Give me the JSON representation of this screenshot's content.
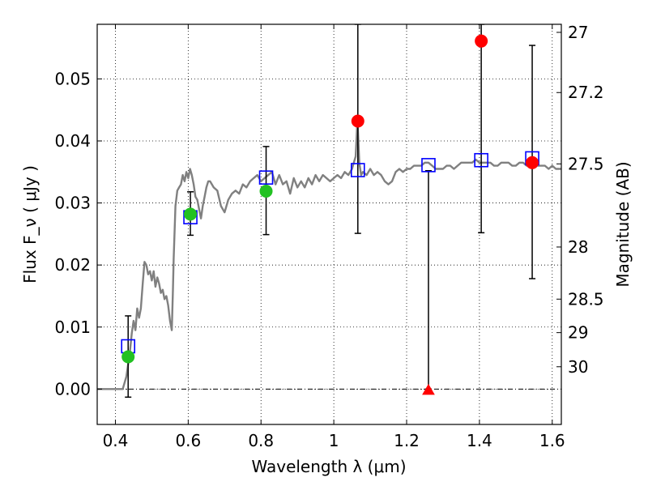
{
  "chart_data": {
    "type": "scatter",
    "xlabel": "Wavelength  λ (μm)",
    "ylabel": "Flux  F_ν  ( μJy )",
    "ylabel_right": "Magnitude (AB)",
    "xlim": [
      0.35,
      1.625
    ],
    "ylim": [
      -0.0057,
      0.0588
    ],
    "x_ticks": [
      {
        "value": 0.4,
        "label": "0.4"
      },
      {
        "value": 0.6,
        "label": "0.6"
      },
      {
        "value": 0.8,
        "label": "0.8"
      },
      {
        "value": 1.0,
        "label": "1"
      },
      {
        "value": 1.2,
        "label": "1.2"
      },
      {
        "value": 1.4,
        "label": "1.4"
      },
      {
        "value": 1.6,
        "label": "1.6"
      }
    ],
    "y_ticks": [
      {
        "value": 0.0,
        "label": "0.00"
      },
      {
        "value": 0.01,
        "label": "0.01"
      },
      {
        "value": 0.02,
        "label": "0.02"
      },
      {
        "value": 0.03,
        "label": "0.03"
      },
      {
        "value": 0.04,
        "label": "0.04"
      },
      {
        "value": 0.05,
        "label": "0.05"
      }
    ],
    "right_ticks": [
      {
        "label": "27",
        "flux": 0.0575
      },
      {
        "label": "27.2",
        "flux": 0.0478
      },
      {
        "label": "27.5",
        "flux": 0.0363
      },
      {
        "label": "28",
        "flux": 0.0229
      },
      {
        "label": "28.5",
        "flux": 0.0145
      },
      {
        "label": "29",
        "flux": 0.0091
      },
      {
        "label": "30",
        "flux": 0.0036
      }
    ],
    "grid": true,
    "colors": {
      "model": "#808080",
      "model_box": "#0000ff",
      "detection": "#22c122",
      "low_sn": "#ff0000",
      "error_bar": "#000000"
    },
    "model_spectrum": [
      [
        0.35,
        0.0
      ],
      [
        0.41,
        0.0
      ],
      [
        0.42,
        0.0
      ],
      [
        0.43,
        0.002
      ],
      [
        0.44,
        0.006
      ],
      [
        0.445,
        0.009
      ],
      [
        0.45,
        0.011
      ],
      [
        0.455,
        0.0095
      ],
      [
        0.46,
        0.013
      ],
      [
        0.465,
        0.0115
      ],
      [
        0.47,
        0.013
      ],
      [
        0.475,
        0.017
      ],
      [
        0.48,
        0.0205
      ],
      [
        0.485,
        0.02
      ],
      [
        0.49,
        0.0185
      ],
      [
        0.495,
        0.019
      ],
      [
        0.5,
        0.0175
      ],
      [
        0.505,
        0.019
      ],
      [
        0.51,
        0.0165
      ],
      [
        0.515,
        0.018
      ],
      [
        0.52,
        0.017
      ],
      [
        0.525,
        0.0155
      ],
      [
        0.53,
        0.016
      ],
      [
        0.535,
        0.0145
      ],
      [
        0.54,
        0.015
      ],
      [
        0.545,
        0.0135
      ],
      [
        0.55,
        0.011
      ],
      [
        0.555,
        0.0095
      ],
      [
        0.558,
        0.016
      ],
      [
        0.56,
        0.021
      ],
      [
        0.565,
        0.0295
      ],
      [
        0.57,
        0.032
      ],
      [
        0.575,
        0.0325
      ],
      [
        0.58,
        0.033
      ],
      [
        0.585,
        0.0345
      ],
      [
        0.59,
        0.0335
      ],
      [
        0.595,
        0.035
      ],
      [
        0.6,
        0.034
      ],
      [
        0.605,
        0.0355
      ],
      [
        0.61,
        0.0345
      ],
      [
        0.615,
        0.033
      ],
      [
        0.62,
        0.031
      ],
      [
        0.625,
        0.0305
      ],
      [
        0.63,
        0.029
      ],
      [
        0.635,
        0.0275
      ],
      [
        0.64,
        0.0295
      ],
      [
        0.645,
        0.031
      ],
      [
        0.65,
        0.0325
      ],
      [
        0.655,
        0.0335
      ],
      [
        0.66,
        0.0335
      ],
      [
        0.665,
        0.033
      ],
      [
        0.67,
        0.0325
      ],
      [
        0.68,
        0.032
      ],
      [
        0.69,
        0.0295
      ],
      [
        0.7,
        0.0285
      ],
      [
        0.71,
        0.0305
      ],
      [
        0.72,
        0.0315
      ],
      [
        0.73,
        0.032
      ],
      [
        0.74,
        0.0315
      ],
      [
        0.75,
        0.033
      ],
      [
        0.76,
        0.0325
      ],
      [
        0.77,
        0.0335
      ],
      [
        0.78,
        0.034
      ],
      [
        0.79,
        0.0345
      ],
      [
        0.8,
        0.0335
      ],
      [
        0.81,
        0.034
      ],
      [
        0.82,
        0.0345
      ],
      [
        0.83,
        0.035
      ],
      [
        0.84,
        0.033
      ],
      [
        0.85,
        0.0345
      ],
      [
        0.86,
        0.033
      ],
      [
        0.87,
        0.0335
      ],
      [
        0.88,
        0.0315
      ],
      [
        0.89,
        0.034
      ],
      [
        0.9,
        0.0325
      ],
      [
        0.91,
        0.0335
      ],
      [
        0.92,
        0.0325
      ],
      [
        0.93,
        0.034
      ],
      [
        0.94,
        0.033
      ],
      [
        0.95,
        0.0345
      ],
      [
        0.96,
        0.0335
      ],
      [
        0.97,
        0.0345
      ],
      [
        0.98,
        0.034
      ],
      [
        0.99,
        0.0335
      ],
      [
        1.0,
        0.034
      ],
      [
        1.01,
        0.0345
      ],
      [
        1.02,
        0.034
      ],
      [
        1.03,
        0.035
      ],
      [
        1.04,
        0.0345
      ],
      [
        1.05,
        0.0355
      ],
      [
        1.055,
        0.0365
      ],
      [
        1.06,
        0.0375
      ],
      [
        1.065,
        0.0435
      ],
      [
        1.07,
        0.0365
      ],
      [
        1.075,
        0.0345
      ],
      [
        1.08,
        0.035
      ],
      [
        1.09,
        0.0345
      ],
      [
        1.1,
        0.0355
      ],
      [
        1.11,
        0.0345
      ],
      [
        1.12,
        0.035
      ],
      [
        1.13,
        0.0345
      ],
      [
        1.14,
        0.0335
      ],
      [
        1.15,
        0.033
      ],
      [
        1.16,
        0.0335
      ],
      [
        1.17,
        0.035
      ],
      [
        1.18,
        0.0355
      ],
      [
        1.19,
        0.035
      ],
      [
        1.2,
        0.0355
      ],
      [
        1.21,
        0.0355
      ],
      [
        1.22,
        0.036
      ],
      [
        1.23,
        0.036
      ],
      [
        1.24,
        0.036
      ],
      [
        1.25,
        0.0365
      ],
      [
        1.26,
        0.0365
      ],
      [
        1.27,
        0.036
      ],
      [
        1.28,
        0.0355
      ],
      [
        1.29,
        0.0355
      ],
      [
        1.3,
        0.0355
      ],
      [
        1.31,
        0.036
      ],
      [
        1.32,
        0.036
      ],
      [
        1.33,
        0.0355
      ],
      [
        1.34,
        0.036
      ],
      [
        1.35,
        0.0365
      ],
      [
        1.36,
        0.0365
      ],
      [
        1.37,
        0.0365
      ],
      [
        1.38,
        0.0365
      ],
      [
        1.39,
        0.037
      ],
      [
        1.4,
        0.0365
      ],
      [
        1.41,
        0.0365
      ],
      [
        1.42,
        0.0365
      ],
      [
        1.43,
        0.0365
      ],
      [
        1.44,
        0.036
      ],
      [
        1.45,
        0.036
      ],
      [
        1.46,
        0.0365
      ],
      [
        1.47,
        0.0365
      ],
      [
        1.48,
        0.0365
      ],
      [
        1.49,
        0.036
      ],
      [
        1.5,
        0.036
      ],
      [
        1.51,
        0.0365
      ],
      [
        1.52,
        0.0365
      ],
      [
        1.53,
        0.036
      ],
      [
        1.54,
        0.036
      ],
      [
        1.55,
        0.0365
      ],
      [
        1.56,
        0.036
      ],
      [
        1.57,
        0.036
      ],
      [
        1.58,
        0.036
      ],
      [
        1.59,
        0.0355
      ],
      [
        1.6,
        0.036
      ],
      [
        1.61,
        0.0355
      ],
      [
        1.625,
        0.0355
      ]
    ],
    "model_fluxes": [
      {
        "x": 0.435,
        "y": 0.0069
      },
      {
        "x": 0.606,
        "y": 0.0277
      },
      {
        "x": 0.814,
        "y": 0.0341
      },
      {
        "x": 1.066,
        "y": 0.0353
      },
      {
        "x": 1.26,
        "y": 0.0361
      },
      {
        "x": 1.405,
        "y": 0.0369
      },
      {
        "x": 1.545,
        "y": 0.0372
      }
    ],
    "observed": [
      {
        "x": 0.435,
        "y": 0.0052,
        "lo": -0.0013,
        "hi": 0.0118,
        "marker": "circle",
        "kind": "detection"
      },
      {
        "x": 0.606,
        "y": 0.0282,
        "lo": 0.0248,
        "hi": 0.0318,
        "marker": "circle",
        "kind": "detection"
      },
      {
        "x": 0.814,
        "y": 0.0319,
        "lo": 0.0249,
        "hi": 0.0391,
        "marker": "circle",
        "kind": "detection"
      },
      {
        "x": 1.066,
        "y": 0.0432,
        "lo": 0.0251,
        "hi": 0.0588,
        "marker": "circle",
        "kind": "low_sn"
      },
      {
        "x": 1.26,
        "y": -0.0002,
        "lo": 0.0,
        "hi": 0.0352,
        "marker": "triangle",
        "kind": "low_sn"
      },
      {
        "x": 1.405,
        "y": 0.0561,
        "lo": 0.0252,
        "hi": 0.0588,
        "marker": "circle",
        "kind": "low_sn"
      },
      {
        "x": 1.545,
        "y": 0.0365,
        "lo": 0.0178,
        "hi": 0.0554,
        "marker": "circle",
        "kind": "low_sn"
      }
    ]
  }
}
